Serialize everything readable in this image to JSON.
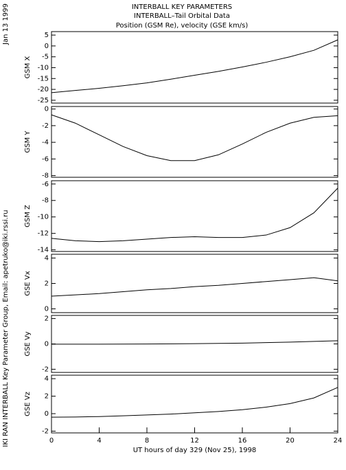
{
  "header": {
    "lines": [
      "INTERBALL KEY PARAMETERS",
      "INTERBALL–Tail Orbital Data",
      "Position (GSM Re), velocity (GSE km/s)"
    ],
    "date": "Jan 13 1999",
    "credit": "IKI RAN INTERBALL Key Parameter Group, Email: apetruko@iki.rssi.ru"
  },
  "chart_data": [
    {
      "type": "line",
      "ylabel": "GSM X",
      "color": "#000000",
      "xlim": [
        0,
        24
      ],
      "x": [
        0,
        2,
        4,
        6,
        8,
        10,
        12,
        14,
        16,
        18,
        20,
        22,
        24
      ],
      "values": [
        -21.5,
        -20.5,
        -19.5,
        -18.3,
        -17,
        -15.3,
        -13.5,
        -11.7,
        -9.7,
        -7.5,
        -5,
        -2,
        2.8
      ],
      "ylim": [
        -26.3,
        6.6
      ],
      "yticks": [
        -25,
        -20,
        -15,
        -10,
        -5,
        0,
        5
      ]
    },
    {
      "type": "line",
      "ylabel": "GSM Y",
      "color": "#000000",
      "xlim": [
        0,
        24
      ],
      "x": [
        0,
        2,
        4,
        6,
        8,
        10,
        12,
        14,
        16,
        18,
        20,
        22,
        24
      ],
      "values": [
        -0.7,
        -1.7,
        -3.1,
        -4.5,
        -5.6,
        -6.2,
        -6.2,
        -5.5,
        -4.2,
        -2.8,
        -1.7,
        -1.0,
        -0.8
      ],
      "ylim": [
        -8.2,
        0.3
      ],
      "yticks": [
        -8,
        -6,
        -4,
        -2,
        0
      ]
    },
    {
      "type": "line",
      "ylabel": "GSM Z",
      "color": "#000000",
      "xlim": [
        0,
        24
      ],
      "x": [
        0,
        2,
        4,
        6,
        8,
        10,
        12,
        14,
        16,
        18,
        20,
        22,
        24
      ],
      "values": [
        -12.6,
        -12.9,
        -13.0,
        -12.9,
        -12.7,
        -12.5,
        -12.4,
        -12.5,
        -12.5,
        -12.2,
        -11.3,
        -9.5,
        -6.5
      ],
      "ylim": [
        -14.2,
        -5.6
      ],
      "yticks": [
        -14,
        -12,
        -10,
        -8,
        -6
      ]
    },
    {
      "type": "line",
      "ylabel": "GSE Vx",
      "color": "#000000",
      "xlim": [
        0,
        24
      ],
      "x": [
        0,
        2,
        4,
        6,
        8,
        10,
        12,
        14,
        16,
        18,
        20,
        22,
        24
      ],
      "values": [
        1.0,
        1.1,
        1.2,
        1.35,
        1.5,
        1.6,
        1.75,
        1.85,
        2.0,
        2.15,
        2.3,
        2.45,
        2.2
      ],
      "ylim": [
        -0.3,
        4.3
      ],
      "yticks": [
        0,
        2,
        4
      ]
    },
    {
      "type": "line",
      "ylabel": "GSE Vy",
      "color": "#000000",
      "xlim": [
        0,
        24
      ],
      "x": [
        0,
        4,
        8,
        12,
        16,
        20,
        24
      ],
      "values": [
        -0.02,
        -0.02,
        -0.01,
        0.02,
        0.06,
        0.14,
        0.25
      ],
      "ylim": [
        -2.25,
        2.25
      ],
      "yticks": [
        -2,
        0,
        2
      ]
    },
    {
      "type": "line",
      "ylabel": "GSE Vz",
      "color": "#000000",
      "xlim": [
        0,
        24
      ],
      "x": [
        0,
        2,
        4,
        6,
        8,
        10,
        12,
        14,
        16,
        18,
        20,
        22,
        24
      ],
      "values": [
        -0.4,
        -0.38,
        -0.33,
        -0.25,
        -0.15,
        -0.05,
        0.1,
        0.25,
        0.45,
        0.75,
        1.15,
        1.8,
        3.0
      ],
      "ylim": [
        -2.2,
        4.4
      ],
      "yticks": [
        -2,
        0,
        2,
        4
      ],
      "xticks": [
        0,
        4,
        8,
        12,
        16,
        20,
        24
      ],
      "xlabel": "UT hours of day 329 (Nov 25), 1998"
    }
  ]
}
